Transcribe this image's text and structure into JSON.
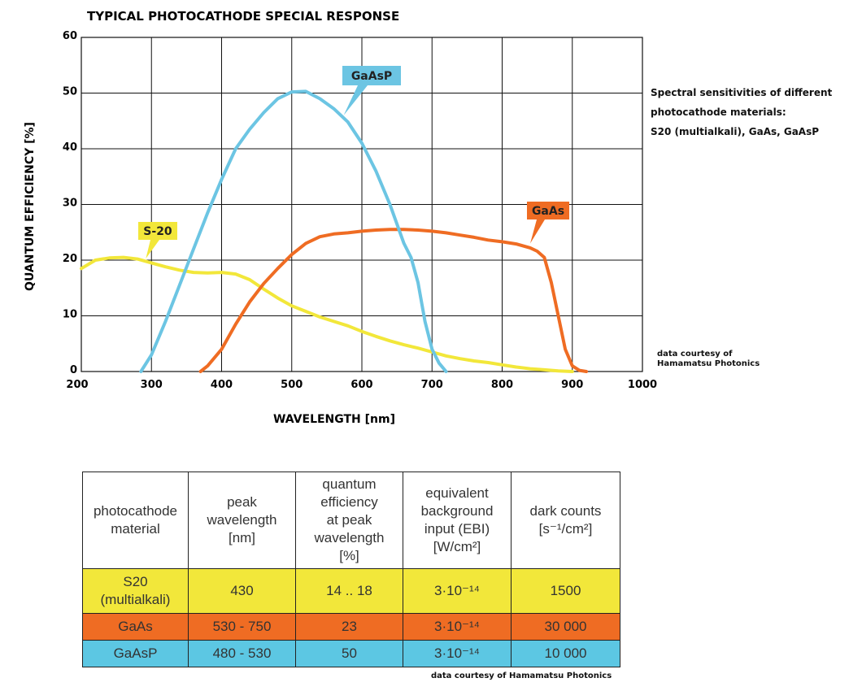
{
  "title": "TYPICAL PHOTOCATHODE SPECIAL RESPONSE",
  "side_note": {
    "lines": [
      "Spectral sensitivities of different",
      "photocathode materials:",
      "S20 (multialkali), GaAs, GaAsP"
    ]
  },
  "chart_courtesy": [
    "data courtesy of",
    "Hamamatsu Photonics"
  ],
  "table_courtesy": "data courtesy of Hamamatsu Photonics",
  "colors": {
    "s20": "#f2e73a",
    "gaas": "#ef6c23",
    "gaasp": "#6cc5e3",
    "grid": "#111111"
  },
  "chart_data": {
    "type": "line",
    "title": "TYPICAL PHOTOCATHODE SPECIAL RESPONSE",
    "xlabel": "WAVELENGTH  [nm]",
    "ylabel": "QUANTUM EFFICIENCY  [%]",
    "xlim": [
      200,
      1000
    ],
    "ylim": [
      0,
      60
    ],
    "xticks": [
      200,
      300,
      400,
      500,
      600,
      700,
      800,
      900,
      1000
    ],
    "yticks": [
      0,
      10,
      20,
      30,
      40,
      50,
      60
    ],
    "grid": true,
    "series": [
      {
        "name": "S-20",
        "color": "#f2e73a",
        "x": [
          200,
          220,
          240,
          260,
          280,
          300,
          320,
          340,
          360,
          380,
          400,
          420,
          440,
          460,
          480,
          500,
          520,
          540,
          560,
          580,
          600,
          620,
          640,
          660,
          680,
          700,
          720,
          740,
          760,
          780,
          800,
          820,
          840,
          860,
          880,
          900
        ],
        "y": [
          18.5,
          20,
          20.4,
          20.5,
          20.2,
          19.5,
          18.8,
          18.2,
          17.8,
          17.7,
          17.8,
          17.5,
          16.5,
          14.8,
          13.2,
          11.8,
          10.8,
          9.8,
          9.0,
          8.2,
          7.2,
          6.3,
          5.5,
          4.8,
          4.2,
          3.5,
          2.8,
          2.3,
          1.9,
          1.6,
          1.2,
          0.8,
          0.5,
          0.3,
          0.1,
          0
        ]
      },
      {
        "name": "GaAs",
        "color": "#ef6c23",
        "x": [
          370,
          380,
          400,
          420,
          440,
          460,
          480,
          500,
          520,
          540,
          560,
          580,
          600,
          620,
          640,
          660,
          680,
          700,
          720,
          740,
          760,
          780,
          800,
          820,
          840,
          850,
          860,
          870,
          880,
          890,
          900,
          910,
          920
        ],
        "y": [
          0,
          1,
          4,
          8.5,
          12.5,
          15.8,
          18.5,
          21,
          23,
          24.2,
          24.7,
          24.9,
          25.2,
          25.4,
          25.5,
          25.5,
          25.4,
          25.2,
          24.9,
          24.5,
          24.1,
          23.6,
          23.3,
          22.9,
          22.2,
          21.6,
          20.5,
          16,
          10,
          4,
          1,
          0.2,
          0
        ]
      },
      {
        "name": "GaAsP",
        "color": "#6cc5e3",
        "x": [
          285,
          300,
          320,
          340,
          360,
          380,
          400,
          420,
          440,
          460,
          480,
          500,
          520,
          540,
          560,
          580,
          600,
          620,
          640,
          660,
          670,
          680,
          690,
          700,
          710,
          720
        ],
        "y": [
          0,
          3,
          9,
          15.5,
          22,
          28.5,
          34.5,
          40,
          43.5,
          46.5,
          49,
          50.2,
          50.3,
          49,
          47.2,
          44.8,
          41,
          36,
          30,
          23,
          20.5,
          16,
          9,
          4,
          1.5,
          0
        ]
      }
    ],
    "annotations": [
      {
        "text": "GaAsP",
        "color": "#6cc5e3",
        "points_to": {
          "x": 574,
          "y": 46
        }
      },
      {
        "text": "GaAs",
        "color": "#ef6c23",
        "points_to": {
          "x": 840,
          "y": 23
        }
      },
      {
        "text": "S-20",
        "color": "#f2e73a",
        "points_to": {
          "x": 292,
          "y": 20.3
        }
      }
    ]
  },
  "table": {
    "headers": [
      [
        "photocathode",
        "material"
      ],
      [
        "peak",
        "wavelength",
        "[nm]"
      ],
      [
        "quantum",
        "efficiency",
        "at peak",
        "wavelength",
        "[%]"
      ],
      [
        "equivalent",
        "background",
        "input (EBI)",
        "[W/cm²]"
      ],
      [
        "dark counts",
        "[s⁻¹/cm²]"
      ]
    ],
    "rows": [
      {
        "material": [
          "S20",
          "(multialkali)"
        ],
        "peak_wavelength": "430",
        "qe_at_peak": "14 .. 18",
        "ebi": "3·10⁻¹⁴",
        "dark_counts": "1500"
      },
      {
        "material": [
          "GaAs"
        ],
        "peak_wavelength": "530 - 750",
        "qe_at_peak": "23",
        "ebi": "3·10⁻¹⁴",
        "dark_counts": "30 000"
      },
      {
        "material": [
          "GaAsP"
        ],
        "peak_wavelength": "480 - 530",
        "qe_at_peak": "50",
        "ebi": "3·10⁻¹⁴",
        "dark_counts": "10 000"
      }
    ]
  }
}
